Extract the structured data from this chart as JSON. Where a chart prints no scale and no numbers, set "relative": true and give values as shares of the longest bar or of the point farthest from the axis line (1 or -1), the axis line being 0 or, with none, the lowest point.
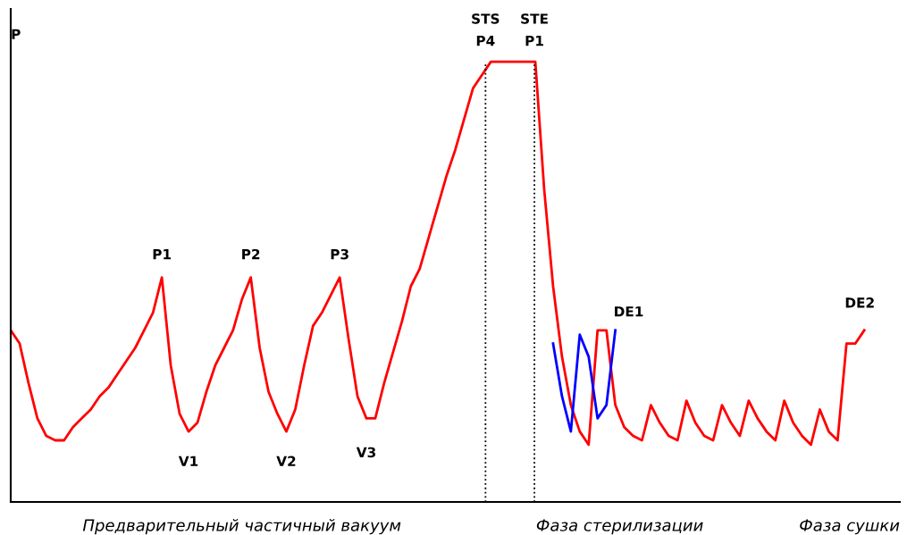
{
  "chart_data": {
    "type": "line",
    "relative": true,
    "ylabel": "P",
    "categories": [
      null,
      null,
      null,
      null,
      null,
      null,
      null,
      null,
      null,
      null,
      null,
      null,
      null,
      null,
      null,
      null,
      null,
      null,
      null,
      null,
      null,
      null,
      null,
      null,
      null,
      null,
      null,
      null,
      null,
      null,
      null,
      null,
      null,
      null,
      null,
      null,
      null,
      null,
      null,
      null,
      null,
      null,
      null,
      null,
      null,
      null,
      null,
      null,
      null,
      null,
      null,
      null,
      null,
      null,
      null,
      null,
      null,
      null,
      null,
      null,
      null,
      null,
      null,
      null,
      null,
      null,
      null,
      null,
      null,
      null,
      null,
      null,
      null,
      null,
      null,
      null,
      null,
      null,
      null,
      null,
      null,
      null,
      null,
      null,
      null,
      null,
      null,
      null,
      null,
      null,
      null,
      null,
      null,
      null,
      null,
      null,
      null
    ],
    "series": [
      {
        "color": "#ff0000",
        "values": [
          0.39,
          0.36,
          0.27,
          0.19,
          0.15,
          0.14,
          0.14,
          0.17,
          0.19,
          0.21,
          0.24,
          0.26,
          0.29,
          0.32,
          0.35,
          0.39,
          0.43,
          0.51,
          0.31,
          0.2,
          0.16,
          0.18,
          0.25,
          0.31,
          0.35,
          0.39,
          0.46,
          0.51,
          0.35,
          0.25,
          0.2,
          0.16,
          0.21,
          0.31,
          0.4,
          0.43,
          0.47,
          0.51,
          0.37,
          0.24,
          0.19,
          0.19,
          0.27,
          0.34,
          0.41,
          0.49,
          0.53,
          0.6,
          0.67,
          0.74,
          0.8,
          0.87,
          0.94,
          0.97,
          1,
          1,
          1,
          1,
          1,
          1,
          0.71,
          0.49,
          0.33,
          0.22,
          0.16,
          0.13,
          0.39,
          0.39,
          0.22,
          0.17,
          0.15,
          0.14,
          0.22,
          0.18,
          0.15,
          0.14,
          0.23,
          0.18,
          0.15,
          0.14,
          0.22,
          0.18,
          0.15,
          0.23,
          0.19,
          0.16,
          0.14,
          0.23,
          0.18,
          0.15,
          0.13,
          0.21,
          0.16,
          0.14,
          0.36,
          0.36,
          0.39
        ]
      },
      {
        "color": "#0000ff",
        "values": [
          null,
          null,
          null,
          null,
          null,
          null,
          null,
          null,
          null,
          null,
          null,
          null,
          null,
          null,
          null,
          null,
          null,
          null,
          null,
          null,
          null,
          null,
          null,
          null,
          null,
          null,
          null,
          null,
          null,
          null,
          null,
          null,
          null,
          null,
          null,
          null,
          null,
          null,
          null,
          null,
          null,
          null,
          null,
          null,
          null,
          null,
          null,
          null,
          null,
          null,
          null,
          null,
          null,
          null,
          null,
          null,
          null,
          null,
          null,
          null,
          null,
          0.36,
          0.24,
          0.16,
          0.38,
          0.33,
          0.19,
          0.22,
          0.39,
          null,
          null,
          null,
          null,
          null,
          null,
          null,
          null,
          null,
          null,
          null,
          null,
          null,
          null,
          null,
          null,
          null,
          null,
          null,
          null,
          null,
          null,
          null,
          null,
          null,
          null,
          null,
          null
        ]
      }
    ],
    "annotations": [
      "P1",
      "P2",
      "P3",
      "V1",
      "V2",
      "V3",
      "P4",
      "P1",
      "DE1",
      "DE2",
      "Предварительный частичный вакуум",
      "Фаза стерилизации",
      "Фаза сушки",
      "STS",
      "STE"
    ],
    "grid": false,
    "marker": "none",
    "line_style": "solid"
  }
}
